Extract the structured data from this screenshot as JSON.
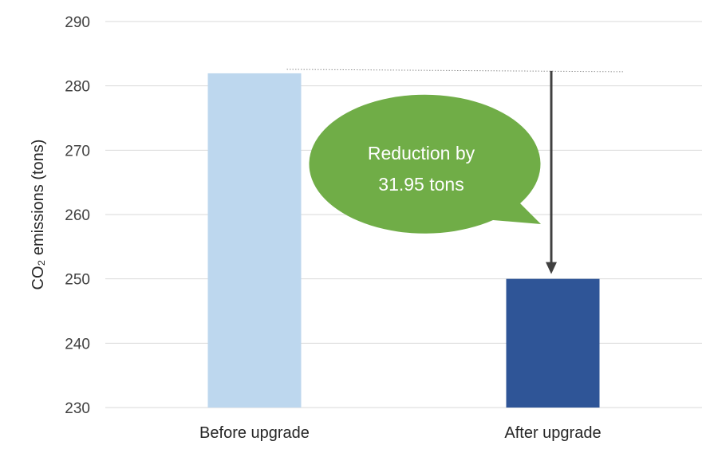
{
  "chart_data": {
    "type": "bar",
    "categories": [
      "Before upgrade",
      "After upgrade"
    ],
    "values": [
      281.95,
      250.0
    ],
    "ylabel": "CO₂ emissions (tons)",
    "ylim": [
      230,
      290
    ],
    "yticks": [
      230,
      240,
      250,
      260,
      270,
      280,
      290
    ],
    "grid": true,
    "bar_colors": [
      "#bdd7ee",
      "#2f5597"
    ],
    "annotation": {
      "lines": [
        "Reduction by",
        "31.95 tons"
      ],
      "reference_value": 281.95,
      "bubble_color": "#70ad47",
      "arrow_color": "#404040"
    }
  }
}
